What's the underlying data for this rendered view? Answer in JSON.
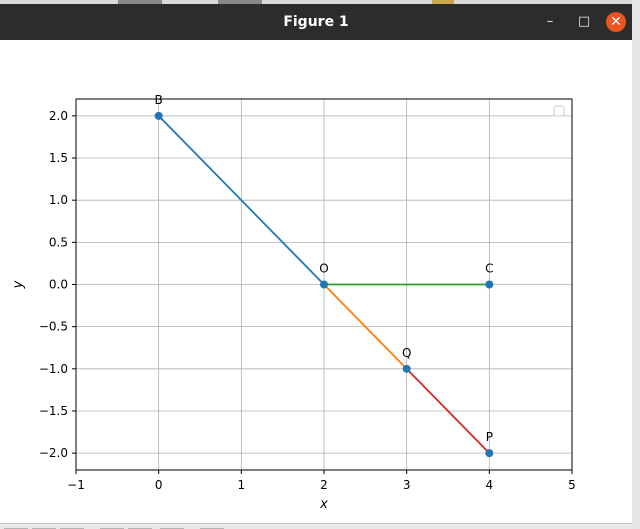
{
  "window": {
    "title": "Figure 1",
    "controls": {
      "minimize": "–",
      "maximize": "□",
      "close": "✕"
    }
  },
  "colors": {
    "titlebar": "#2c2c2c",
    "close_button": "#e95420",
    "point_fill": "#1f77b4"
  },
  "chart_data": {
    "type": "line",
    "title": "",
    "xlabel": "x",
    "ylabel": "y",
    "xlim": [
      -1,
      5
    ],
    "ylim": [
      -2.2,
      2.2
    ],
    "xticks": [
      -1,
      0,
      1,
      2,
      3,
      4,
      5
    ],
    "xtick_labels": [
      "−1",
      "0",
      "1",
      "2",
      "3",
      "4",
      "5"
    ],
    "yticks": [
      -2.0,
      -1.5,
      -1.0,
      -0.5,
      0.0,
      0.5,
      1.0,
      1.5,
      2.0
    ],
    "ytick_labels": [
      "−2.0",
      "−1.5",
      "−1.0",
      "−0.5",
      "0.0",
      "0.5",
      "1.0",
      "1.5",
      "2.0"
    ],
    "grid": true,
    "legend": "top-right, empty",
    "points": [
      {
        "label": "B",
        "x": 0,
        "y": 2
      },
      {
        "label": "O",
        "x": 2,
        "y": 0
      },
      {
        "label": "C",
        "x": 4,
        "y": 0
      },
      {
        "label": "Q",
        "x": 3,
        "y": -1
      },
      {
        "label": "P",
        "x": 4,
        "y": -2
      }
    ],
    "segments": [
      {
        "from": "B",
        "to": "O",
        "color": "#1f77b4",
        "x": [
          0,
          2
        ],
        "y": [
          2,
          0
        ]
      },
      {
        "from": "O",
        "to": "Q",
        "color": "#ff7f0e",
        "x": [
          2,
          3
        ],
        "y": [
          0,
          -1
        ]
      },
      {
        "from": "O",
        "to": "C",
        "color": "#2ca02c",
        "x": [
          2,
          4
        ],
        "y": [
          0,
          0
        ]
      },
      {
        "from": "Q",
        "to": "P",
        "color": "#d62728",
        "x": [
          3,
          4
        ],
        "y": [
          -1,
          -2
        ]
      }
    ]
  }
}
